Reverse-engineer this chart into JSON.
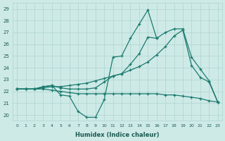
{
  "xlabel": "Humidex (Indice chaleur)",
  "xlim": [
    -0.5,
    23.5
  ],
  "ylim": [
    19.5,
    29.5
  ],
  "yticks": [
    20,
    21,
    22,
    23,
    24,
    25,
    26,
    27,
    28,
    29
  ],
  "xticks": [
    0,
    1,
    2,
    3,
    4,
    5,
    6,
    7,
    8,
    9,
    10,
    11,
    12,
    13,
    14,
    15,
    16,
    17,
    18,
    19,
    20,
    21,
    22,
    23
  ],
  "background_color": "#ceeae7",
  "grid_color": "#aed4d0",
  "line_color": "#1a7a6e",
  "lines": [
    {
      "x": [
        0,
        1,
        2,
        3,
        4,
        5,
        6,
        7,
        8,
        9,
        10,
        11,
        12,
        13,
        14,
        15,
        16,
        17,
        18,
        19,
        20,
        21,
        22,
        23
      ],
      "y": [
        22.2,
        22.2,
        22.2,
        22.4,
        22.5,
        21.7,
        21.6,
        20.3,
        19.8,
        19.8,
        21.3,
        24.9,
        25.0,
        26.5,
        27.7,
        28.9,
        26.5,
        null,
        null,
        null,
        null,
        null,
        null,
        null
      ]
    },
    {
      "x": [
        0,
        1,
        2,
        3,
        4,
        5,
        6,
        7,
        8,
        9,
        10,
        11,
        12,
        13,
        14,
        15,
        16,
        17,
        18,
        19,
        20,
        21,
        22,
        23
      ],
      "y": [
        22.2,
        22.2,
        22.2,
        22.4,
        22.5,
        22.3,
        22.2,
        22.2,
        22.2,
        22.3,
        22.8,
        23.3,
        23.5,
        24.3,
        25.2,
        26.6,
        26.5,
        27.0,
        27.3,
        27.3,
        24.9,
        23.9,
        22.9,
        21.1
      ]
    },
    {
      "x": [
        0,
        1,
        2,
        3,
        4,
        5,
        6,
        7,
        8,
        9,
        10,
        11,
        12,
        13,
        14,
        15,
        16,
        17,
        18,
        19,
        20,
        21,
        22,
        23
      ],
      "y": [
        22.2,
        22.2,
        22.2,
        22.3,
        22.4,
        22.4,
        22.5,
        22.6,
        22.7,
        22.9,
        23.1,
        23.3,
        23.5,
        23.8,
        24.1,
        24.5,
        25.1,
        25.8,
        26.7,
        27.2,
        24.2,
        23.2,
        22.8,
        21.1
      ]
    },
    {
      "x": [
        0,
        1,
        2,
        3,
        4,
        5,
        6,
        7,
        8,
        9,
        10,
        11,
        12,
        13,
        14,
        15,
        16,
        17,
        18,
        19,
        20,
        21,
        22,
        23
      ],
      "y": [
        22.2,
        22.2,
        22.2,
        22.2,
        22.1,
        22.0,
        21.9,
        21.8,
        21.8,
        21.8,
        21.8,
        21.8,
        21.8,
        21.8,
        21.8,
        21.8,
        21.8,
        21.7,
        21.7,
        21.6,
        21.5,
        21.4,
        21.2,
        21.1
      ]
    }
  ]
}
